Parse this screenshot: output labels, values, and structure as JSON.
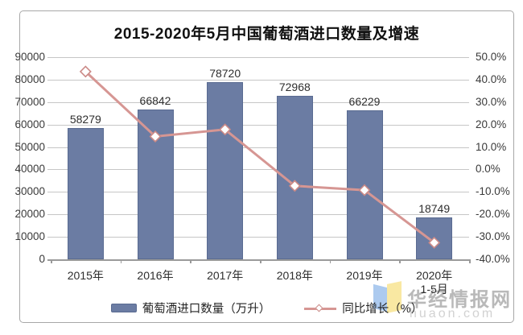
{
  "title": "2015-2020年5月中国葡萄酒进口数量及增速",
  "chart_data": {
    "type": "bar+line",
    "title": "2015-2020年5月中国葡萄酒进口数量及增速",
    "categories": [
      "2015年",
      "2016年",
      "2017年",
      "2018年",
      "2019年",
      "2020年"
    ],
    "category_sublabels": [
      "",
      "",
      "",
      "",
      "",
      "1-5月"
    ],
    "series": [
      {
        "name": "葡萄酒进口数量（万升）",
        "type": "bar",
        "axis": "left",
        "values": [
          58279,
          66842,
          78720,
          72968,
          66229,
          18749
        ]
      },
      {
        "name": "同比增长（%）",
        "type": "line",
        "axis": "right",
        "marker": "hollow-diamond",
        "values": [
          43.6,
          14.7,
          17.8,
          -7.3,
          -9.2,
          -32.6
        ]
      }
    ],
    "left_axis": {
      "min": 0,
      "max": 90000,
      "step": 10000,
      "tick_labels": [
        "0",
        "10000",
        "20000",
        "30000",
        "40000",
        "50000",
        "60000",
        "70000",
        "80000",
        "90000"
      ]
    },
    "right_axis": {
      "min": -40,
      "max": 50,
      "step": 10,
      "tick_labels": [
        "-40.0%",
        "-30.0%",
        "-20.0%",
        "-10.0%",
        "0.0%",
        "10.0%",
        "20.0%",
        "30.0%",
        "40.0%",
        "50.0%"
      ]
    },
    "grid": true,
    "legend_position": "bottom"
  },
  "legend": {
    "bar_label": "葡萄酒进口数量（万升）",
    "line_label": "同比增长（%）"
  },
  "watermark": {
    "brand": "华经情报网",
    "domain": "huaon.com"
  },
  "colors": {
    "bar": "#6b7ca3",
    "bar_border": "#5a6b91",
    "line": "#d69693",
    "marker_border": "#cb8a87",
    "marker_fill": "#ffffff",
    "grid": "#c6c6c6",
    "axis": "#9a9a9a",
    "frame": "#a8a8a8",
    "watermark_brand": "#b9b9b9",
    "watermark_domain": "#d2d2d2",
    "logo_blue": "#a5c6ee",
    "logo_yellow": "#f9e79b"
  }
}
